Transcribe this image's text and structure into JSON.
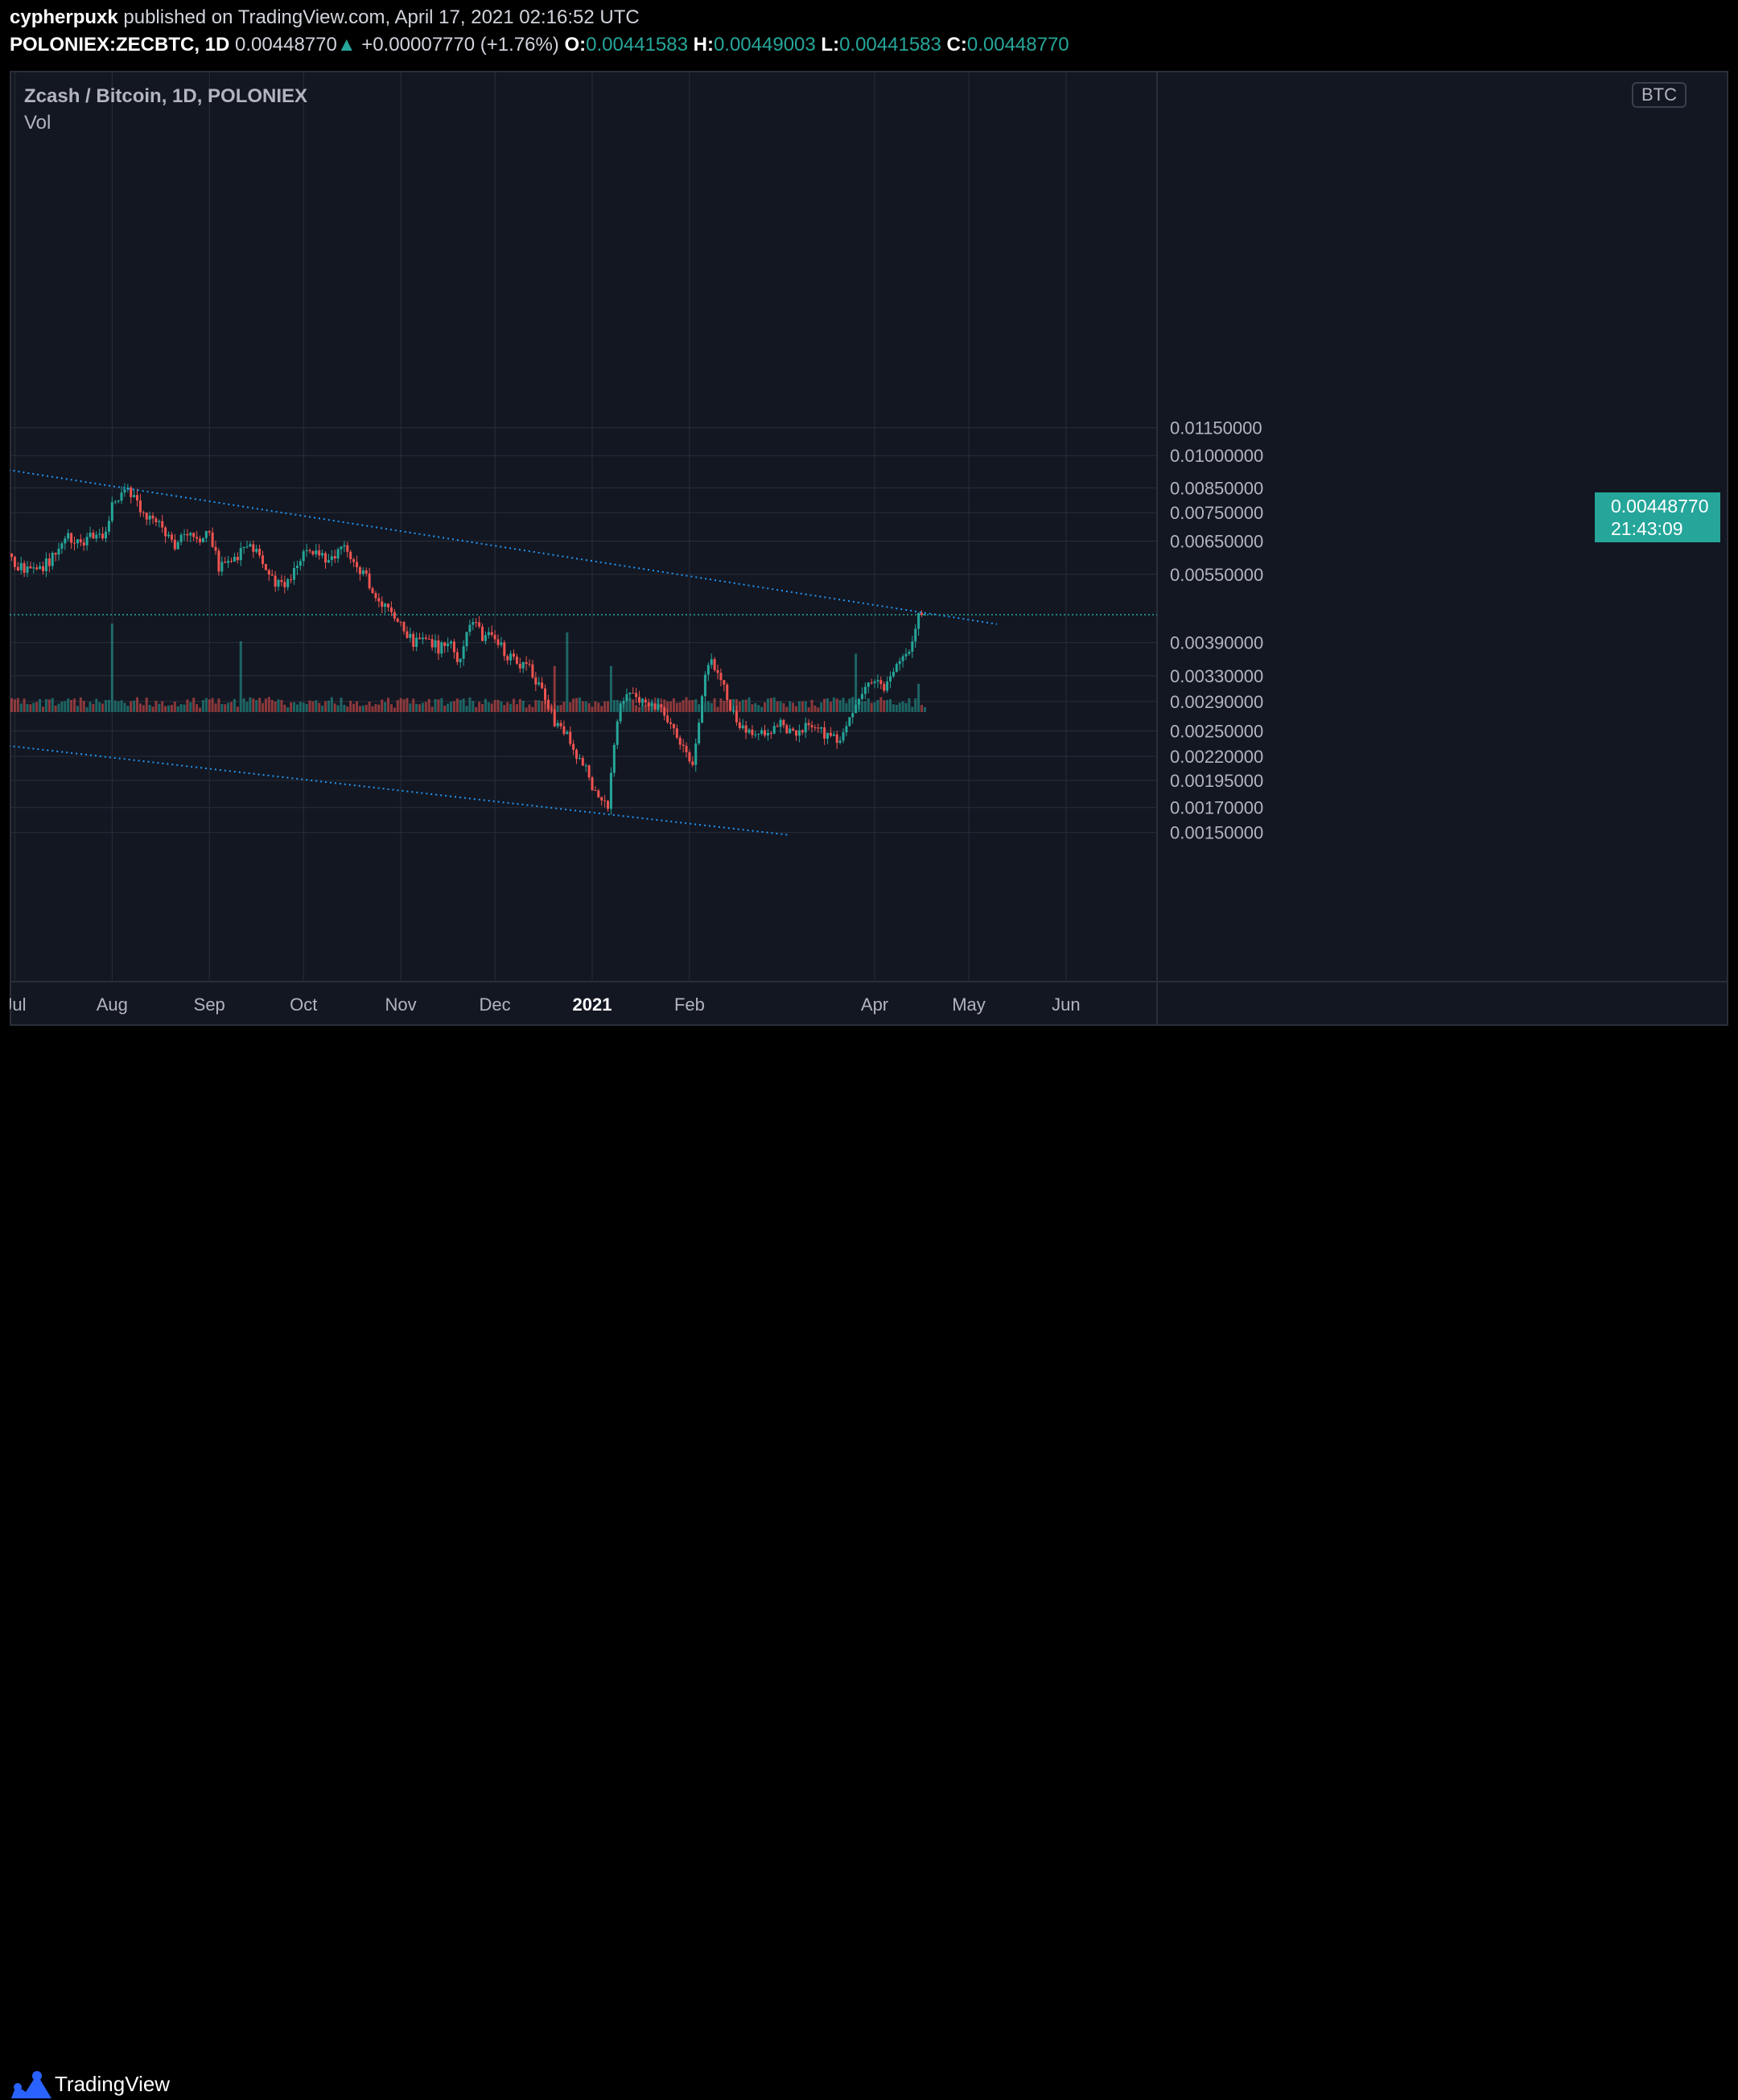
{
  "header": {
    "author": "cypherpuxk",
    "published_text": "published on TradingView.com, April 17, 2021 02:16:52 UTC",
    "symbol": "POLONIEX:ZECBTC, 1D",
    "last": "0.00448770",
    "change_arrow": "▲",
    "change": "+0.00007770 (+1.76%)",
    "o_label": "O:",
    "o": "0.00441583",
    "h_label": "H:",
    "h": "0.00449003",
    "l_label": "L:",
    "l": "0.00441583",
    "c_label": "C:",
    "c": "0.00448770"
  },
  "chart": {
    "title": "Zcash / Bitcoin, 1D, POLONIEX",
    "volume_label": "Vol",
    "currency": "BTC",
    "last_price_label": "0.00448770",
    "countdown": "21:43:09"
  },
  "footer": {
    "brand": "TradingView"
  },
  "colors": {
    "up": "#26a69a",
    "down": "#ef5350",
    "background": "#131722",
    "trendline": "#2196f3",
    "grid": "#2a2e39"
  },
  "chart_data": {
    "type": "candlestick",
    "title": "Zcash / Bitcoin, 1D, POLONIEX",
    "y_scale": "log",
    "ylim": [
      0.00135,
      0.011
    ],
    "y_ticks": [
      0.0015,
      0.0017,
      0.00195,
      0.0022,
      0.0025,
      0.0029,
      0.0033,
      0.0039,
      0.0055,
      0.0065,
      0.0075,
      0.0085,
      0.01,
      0.0115
    ],
    "y_tick_labels": [
      "0.00150000",
      "0.00170000",
      "0.00195000",
      "0.00220000",
      "0.00250000",
      "0.00290000",
      "0.00330000",
      "0.00390000",
      "0.00550000",
      "0.00650000",
      "0.00750000",
      "0.00850000",
      "0.01000000",
      "0.01150000"
    ],
    "x_start": "2020-06-29",
    "x_months": [
      {
        "label": "Jul",
        "date": "2020-07-01"
      },
      {
        "label": "Aug",
        "date": "2020-08-01"
      },
      {
        "label": "Sep",
        "date": "2020-09-01"
      },
      {
        "label": "Oct",
        "date": "2020-10-01"
      },
      {
        "label": "Nov",
        "date": "2020-11-01"
      },
      {
        "label": "Dec",
        "date": "2020-12-01"
      },
      {
        "label": "2021",
        "date": "2021-01-01",
        "bold": true
      },
      {
        "label": "Feb",
        "date": "2021-02-01"
      },
      {
        "label": "Apr",
        "date": "2021-04-01"
      },
      {
        "label": "May",
        "date": "2021-05-01"
      },
      {
        "label": "Jun",
        "date": "2021-06-01"
      }
    ],
    "last_price": 0.0044877,
    "closes": [
      [
        "2020-06-29",
        0.00615
      ],
      [
        "2020-07-01",
        0.0058
      ],
      [
        "2020-07-05",
        0.00562
      ],
      [
        "2020-07-10",
        0.00572
      ],
      [
        "2020-07-14",
        0.0061
      ],
      [
        "2020-07-18",
        0.0067
      ],
      [
        "2020-07-22",
        0.0064
      ],
      [
        "2020-07-26",
        0.0067
      ],
      [
        "2020-07-29",
        0.0065
      ],
      [
        "2020-08-01",
        0.0077
      ],
      [
        "2020-08-05",
        0.0085
      ],
      [
        "2020-08-09",
        0.0079
      ],
      [
        "2020-08-13",
        0.0073
      ],
      [
        "2020-08-17",
        0.0069
      ],
      [
        "2020-08-21",
        0.0064
      ],
      [
        "2020-08-25",
        0.0068
      ],
      [
        "2020-08-29",
        0.0066
      ],
      [
        "2020-09-01",
        0.0069
      ],
      [
        "2020-09-04",
        0.0057
      ],
      [
        "2020-09-08",
        0.0059
      ],
      [
        "2020-09-12",
        0.0062
      ],
      [
        "2020-09-16",
        0.0063
      ],
      [
        "2020-09-19",
        0.0055
      ],
      [
        "2020-09-23",
        0.0052
      ],
      [
        "2020-09-27",
        0.0054
      ],
      [
        "2020-10-01",
        0.0061
      ],
      [
        "2020-10-05",
        0.0062
      ],
      [
        "2020-10-09",
        0.0058
      ],
      [
        "2020-10-13",
        0.0065
      ],
      [
        "2020-10-17",
        0.0057
      ],
      [
        "2020-10-21",
        0.0055
      ],
      [
        "2020-10-24",
        0.0048
      ],
      [
        "2020-10-28",
        0.0047
      ],
      [
        "2020-11-01",
        0.0043
      ],
      [
        "2020-11-05",
        0.0039
      ],
      [
        "2020-11-09",
        0.004
      ],
      [
        "2020-11-13",
        0.0038
      ],
      [
        "2020-11-17",
        0.0039
      ],
      [
        "2020-11-19",
        0.0035
      ],
      [
        "2020-11-21",
        0.0039
      ],
      [
        "2020-11-24",
        0.0044
      ],
      [
        "2020-11-27",
        0.004
      ],
      [
        "2020-12-01",
        0.004
      ],
      [
        "2020-12-04",
        0.0037
      ],
      [
        "2020-12-08",
        0.0035
      ],
      [
        "2020-12-12",
        0.0034
      ],
      [
        "2020-12-16",
        0.0031
      ],
      [
        "2020-12-20",
        0.0026
      ],
      [
        "2020-12-24",
        0.0025
      ],
      [
        "2020-12-27",
        0.0022
      ],
      [
        "2020-12-31",
        0.002
      ],
      [
        "2021-01-03",
        0.00175
      ],
      [
        "2021-01-06",
        0.0017
      ],
      [
        "2021-01-09",
        0.0027
      ],
      [
        "2021-01-12",
        0.0031
      ],
      [
        "2021-01-15",
        0.0029
      ],
      [
        "2021-01-19",
        0.0028
      ],
      [
        "2021-01-22",
        0.0028
      ],
      [
        "2021-01-25",
        0.0026
      ],
      [
        "2021-01-29",
        0.0024
      ],
      [
        "2021-02-02",
        0.0021
      ],
      [
        "2021-02-06",
        0.0033
      ],
      [
        "2021-02-08",
        0.0036
      ],
      [
        "2021-02-11",
        0.0032
      ],
      [
        "2021-02-15",
        0.0027
      ],
      [
        "2021-02-19",
        0.0025
      ],
      [
        "2021-02-23",
        0.0025
      ],
      [
        "2021-02-27",
        0.0025
      ],
      [
        "2021-03-03",
        0.0026
      ],
      [
        "2021-03-07",
        0.0024
      ],
      [
        "2021-03-11",
        0.0026
      ],
      [
        "2021-03-15",
        0.0025
      ],
      [
        "2021-03-18",
        0.0024
      ],
      [
        "2021-03-21",
        0.0024
      ],
      [
        "2021-03-25",
        0.0027
      ],
      [
        "2021-03-28",
        0.003
      ],
      [
        "2021-04-01",
        0.0033
      ],
      [
        "2021-04-04",
        0.0031
      ],
      [
        "2021-04-07",
        0.0034
      ],
      [
        "2021-04-10",
        0.0036
      ],
      [
        "2021-04-13",
        0.0039
      ],
      [
        "2021-04-15",
        0.0044
      ],
      [
        "2021-04-17",
        0.0044877
      ]
    ],
    "trendlines": [
      {
        "from": [
          "2020-06-29",
          0.0093
        ],
        "to": [
          "2021-05-10",
          0.00428
        ]
      },
      {
        "from": [
          "2020-06-29",
          0.00232
        ],
        "to": [
          "2021-03-05",
          0.00148
        ]
      }
    ],
    "volume_spikes": [
      [
        "2020-08-01",
        5.0
      ],
      [
        "2020-09-11",
        4.0
      ],
      [
        "2020-12-24",
        4.5
      ],
      [
        "2020-12-20",
        2.6
      ],
      [
        "2021-01-07",
        2.6
      ],
      [
        "2021-03-26",
        3.3
      ],
      [
        "2021-04-15",
        1.6
      ]
    ]
  }
}
